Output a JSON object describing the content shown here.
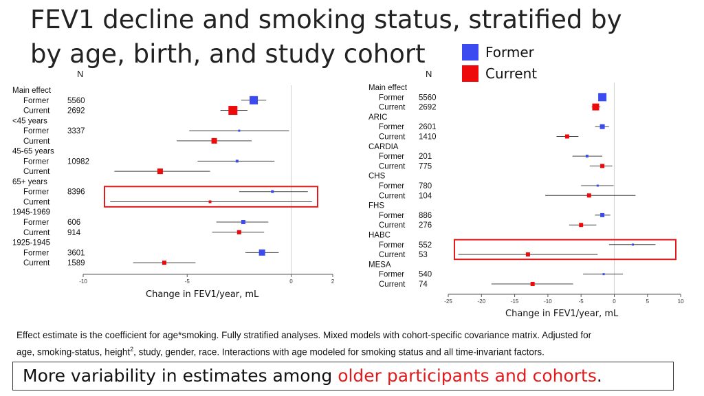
{
  "title": "FEV1 decline and smoking status, stratified by by age, birth, and study cohort",
  "legend": [
    {
      "label": "Former",
      "color": "#3b4bef"
    },
    {
      "label": "Current",
      "color": "#ee0a0a"
    }
  ],
  "n_header": "N",
  "chart_data": [
    {
      "type": "forest",
      "xlabel": "Change in FEV1/year, mL",
      "xlim": [
        -10,
        2
      ],
      "xticks": [
        -10,
        -5,
        0,
        2
      ],
      "reference_line": 0,
      "groups": [
        {
          "label": "Main effect",
          "rows": [
            {
              "label": "Former",
              "n": "5560",
              "status": "former",
              "est": -1.8,
              "lo": -2.4,
              "hi": -1.2,
              "size": 12
            },
            {
              "label": "Current",
              "n": "2692",
              "status": "current",
              "est": -2.8,
              "lo": -3.4,
              "hi": -2.1,
              "size": 13
            }
          ]
        },
        {
          "label": "<45 years",
          "rows": [
            {
              "label": "Former",
              "n": "3337",
              "status": "former",
              "est": -2.5,
              "lo": -4.9,
              "hi": -0.1,
              "size": 3
            },
            {
              "label": "Current",
              "n": "",
              "status": "current",
              "est": -3.7,
              "lo": -5.5,
              "hi": -1.9,
              "size": 8
            }
          ]
        },
        {
          "label": "45-65 years",
          "rows": [
            {
              "label": "Former",
              "n": "10982",
              "status": "former",
              "est": -2.6,
              "lo": -4.5,
              "hi": -0.8,
              "size": 4
            },
            {
              "label": "Current",
              "n": "",
              "status": "current",
              "est": -6.3,
              "lo": -8.5,
              "hi": -3.9,
              "size": 8
            }
          ]
        },
        {
          "label": "65+ years",
          "rows": [
            {
              "label": "Former",
              "n": "8396",
              "status": "former",
              "est": -0.9,
              "lo": -2.5,
              "hi": 0.8,
              "size": 4
            },
            {
              "label": "Current",
              "n": "",
              "status": "current",
              "est": -3.9,
              "lo": -8.7,
              "hi": 1.0,
              "size": 4
            }
          ]
        },
        {
          "label": "1945-1969",
          "rows": [
            {
              "label": "Former",
              "n": "606",
              "status": "former",
              "est": -2.3,
              "lo": -3.6,
              "hi": -1.1,
              "size": 6
            },
            {
              "label": "Current",
              "n": "914",
              "status": "current",
              "est": -2.5,
              "lo": -3.8,
              "hi": -1.3,
              "size": 6
            }
          ]
        },
        {
          "label": "1925-1945",
          "rows": [
            {
              "label": "Former",
              "n": "3601",
              "status": "former",
              "est": -1.4,
              "lo": -2.2,
              "hi": -0.6,
              "size": 9
            },
            {
              "label": "Current",
              "n": "1589",
              "status": "current",
              "est": -6.1,
              "lo": -7.6,
              "hi": -4.6,
              "size": 6
            }
          ]
        }
      ],
      "highlighted_group": "65+ years"
    },
    {
      "type": "forest",
      "xlabel": "Change in FEV1/year, mL",
      "xlim": [
        -25,
        10
      ],
      "xticks": [
        -25,
        -20,
        -15,
        -10,
        -5,
        0,
        5,
        10
      ],
      "reference_line": 0,
      "groups": [
        {
          "label": "Main effect",
          "rows": [
            {
              "label": "Former",
              "n": "5560",
              "status": "former",
              "est": -1.8,
              "lo": -2.3,
              "hi": -1.2,
              "size": 12
            },
            {
              "label": "Current",
              "n": "2692",
              "status": "current",
              "est": -2.8,
              "lo": -3.4,
              "hi": -2.1,
              "size": 10
            }
          ]
        },
        {
          "label": "ARIC",
          "rows": [
            {
              "label": "Former",
              "n": "2601",
              "status": "former",
              "est": -1.8,
              "lo": -2.9,
              "hi": -0.8,
              "size": 7
            },
            {
              "label": "Current",
              "n": "1410",
              "status": "current",
              "est": -7.1,
              "lo": -8.7,
              "hi": -5.4,
              "size": 6
            }
          ]
        },
        {
          "label": "CARDIA",
          "rows": [
            {
              "label": "Former",
              "n": "201",
              "status": "former",
              "est": -4.1,
              "lo": -6.3,
              "hi": -1.8,
              "size": 4
            },
            {
              "label": "Current",
              "n": "775",
              "status": "current",
              "est": -1.8,
              "lo": -3.7,
              "hi": -0.3,
              "size": 6
            }
          ]
        },
        {
          "label": "CHS",
          "rows": [
            {
              "label": "Former",
              "n": "780",
              "status": "former",
              "est": -2.5,
              "lo": -5.0,
              "hi": -0.1,
              "size": 3
            },
            {
              "label": "Current",
              "n": "104",
              "status": "current",
              "est": -3.8,
              "lo": -10.4,
              "hi": 3.2,
              "size": 6
            }
          ]
        },
        {
          "label": "FHS",
          "rows": [
            {
              "label": "Former",
              "n": "886",
              "status": "former",
              "est": -1.8,
              "lo": -2.9,
              "hi": -0.6,
              "size": 6
            },
            {
              "label": "Current",
              "n": "276",
              "status": "current",
              "est": -5.0,
              "lo": -6.8,
              "hi": -2.7,
              "size": 6
            }
          ]
        },
        {
          "label": "HABC",
          "rows": [
            {
              "label": "Former",
              "n": "552",
              "status": "former",
              "est": 2.8,
              "lo": -0.8,
              "hi": 6.2,
              "size": 3
            },
            {
              "label": "Current",
              "n": "53",
              "status": "current",
              "est": -13.0,
              "lo": -23.5,
              "hi": -2.5,
              "size": 6
            }
          ]
        },
        {
          "label": "MESA",
          "rows": [
            {
              "label": "Former",
              "n": "540",
              "status": "former",
              "est": -1.6,
              "lo": -4.7,
              "hi": 1.3,
              "size": 3
            },
            {
              "label": "Current",
              "n": "74",
              "status": "current",
              "est": -12.3,
              "lo": -18.5,
              "hi": -6.2,
              "size": 6
            }
          ]
        }
      ],
      "highlighted_group": "HABC"
    }
  ],
  "footnote": {
    "line1": "Effect estimate is the coefficient for age*smoking. Fully stratified analyses. Mixed models with cohort-specific covariance matrix. Adjusted for",
    "line2_pre": "age, smoking-status, height",
    "line2_sup": "2",
    "line2_post": ", study, gender, race. Interactions with age modeled for smoking status and all time-invariant factors."
  },
  "conclusion": {
    "prefix": "More variability in estimates among ",
    "highlight": "older participants and cohorts",
    "suffix": "."
  }
}
